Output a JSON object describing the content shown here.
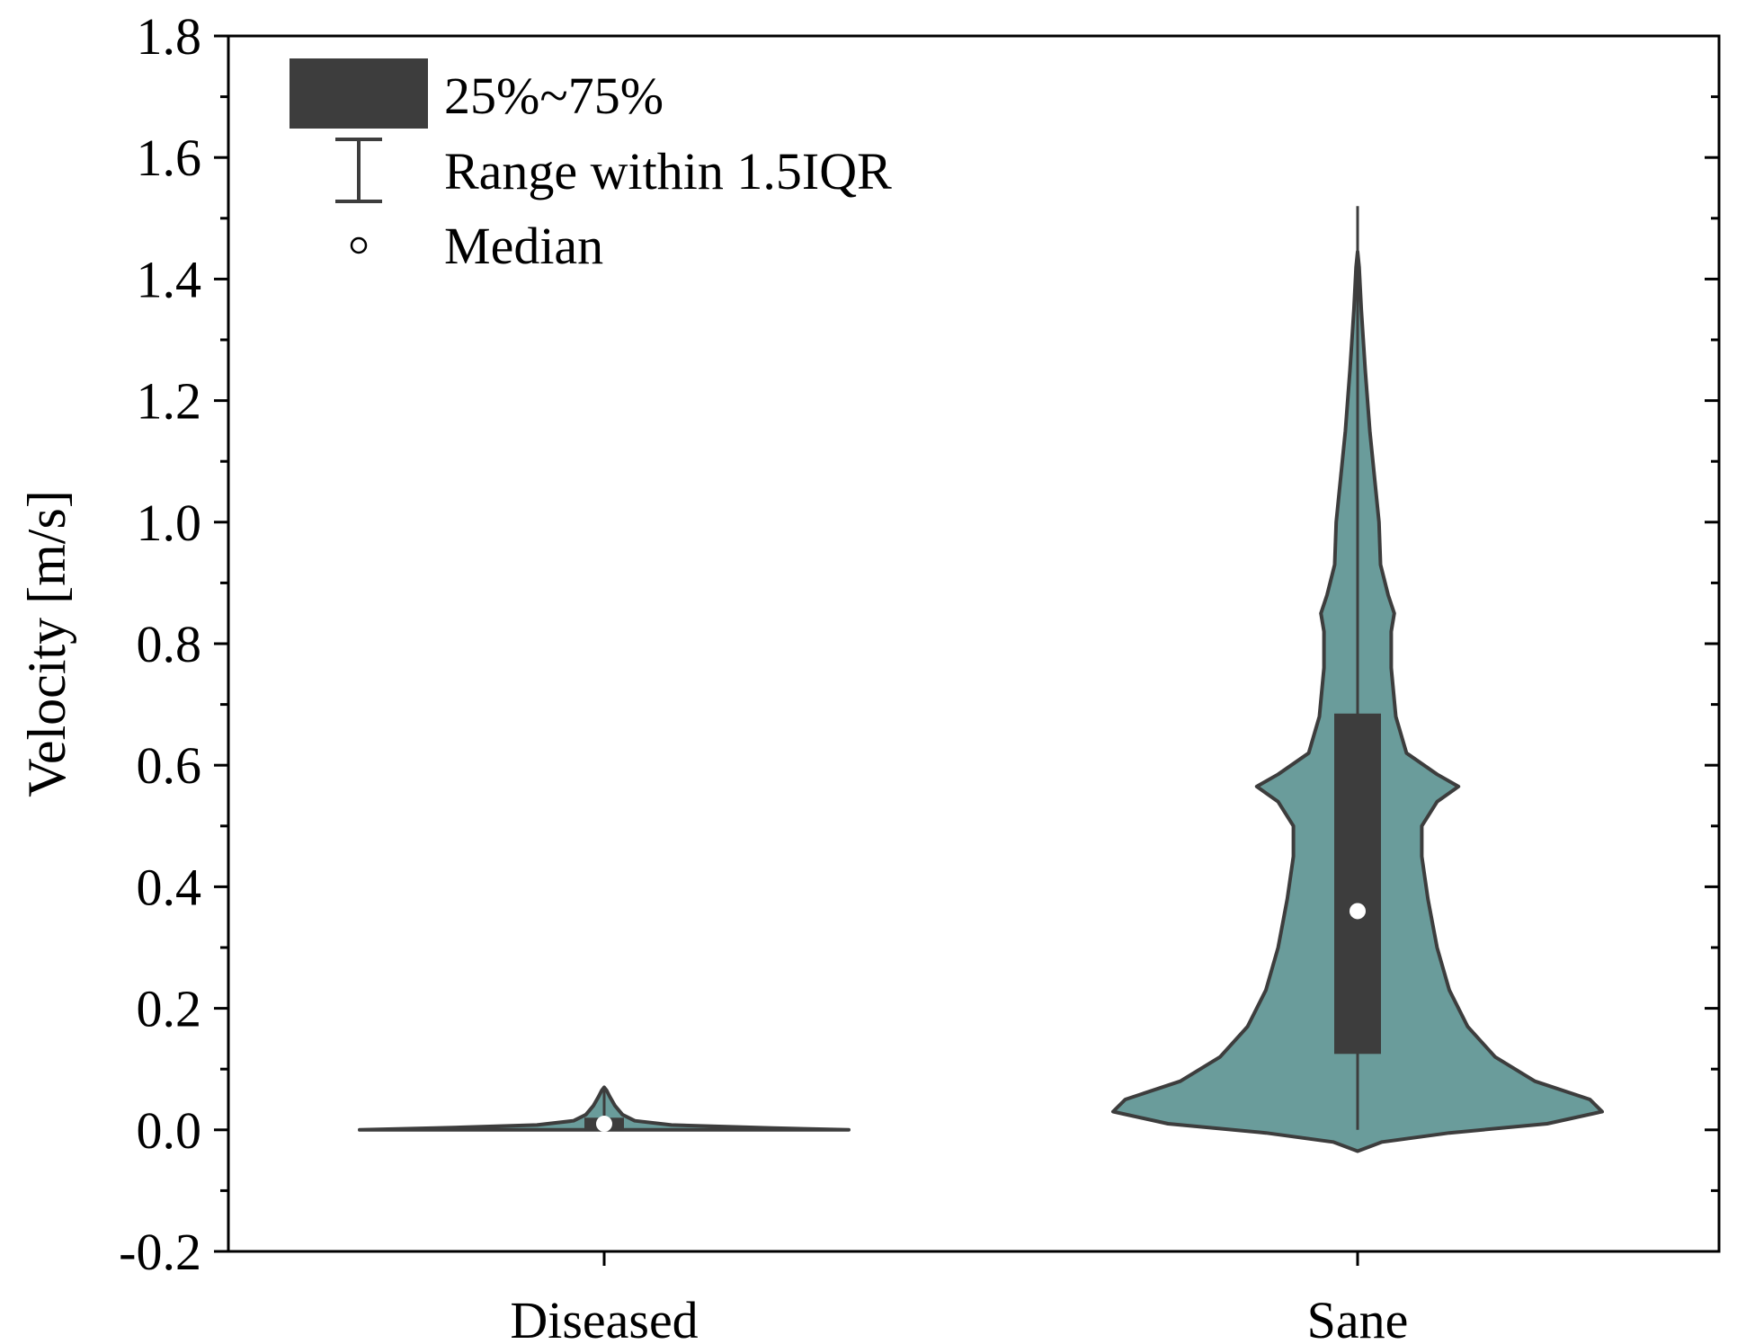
{
  "chart_data": {
    "type": "violin",
    "ylabel": "Velocity [m/s]",
    "xlabel": "",
    "ylim": [
      -0.2,
      1.8
    ],
    "yticks": [
      "-0.2",
      "0.0",
      "0.2",
      "0.4",
      "0.6",
      "0.8",
      "1.0",
      "1.2",
      "1.4",
      "1.6",
      "1.8"
    ],
    "categories": [
      "Diseased",
      "Sane"
    ],
    "fill_color": "#6a9c9b",
    "box_color": "#3d3d3d",
    "line_color": "#3d3d3d",
    "legend": {
      "placement": "top-left",
      "items": [
        {
          "symbol": "box",
          "label": "25%~75%"
        },
        {
          "symbol": "whisker",
          "label": "Range within 1.5IQR"
        },
        {
          "symbol": "median-dot",
          "label": "Median"
        }
      ]
    },
    "series": [
      {
        "category": "Diseased",
        "q1": 0.0,
        "q3": 0.02,
        "median": 0.01,
        "whisker_low": 0.0,
        "whisker_high": 0.07,
        "density": [
          {
            "y": 0.0,
            "w": 0.8
          },
          {
            "y": 0.003,
            "w": 0.55
          },
          {
            "y": 0.008,
            "w": 0.22
          },
          {
            "y": 0.015,
            "w": 0.1
          },
          {
            "y": 0.025,
            "w": 0.06
          },
          {
            "y": 0.04,
            "w": 0.035
          },
          {
            "y": 0.055,
            "w": 0.018
          },
          {
            "y": 0.065,
            "w": 0.008
          },
          {
            "y": 0.07,
            "w": 0.0
          }
        ]
      },
      {
        "category": "Sane",
        "q1": 0.125,
        "q3": 0.685,
        "median": 0.36,
        "whisker_low": 0.0,
        "whisker_high": 1.52,
        "density": [
          {
            "y": -0.035,
            "w": 0.0
          },
          {
            "y": -0.02,
            "w": 0.08
          },
          {
            "y": -0.005,
            "w": 0.3
          },
          {
            "y": 0.01,
            "w": 0.62
          },
          {
            "y": 0.03,
            "w": 0.8
          },
          {
            "y": 0.05,
            "w": 0.76
          },
          {
            "y": 0.08,
            "w": 0.58
          },
          {
            "y": 0.12,
            "w": 0.45
          },
          {
            "y": 0.17,
            "w": 0.36
          },
          {
            "y": 0.23,
            "w": 0.3
          },
          {
            "y": 0.3,
            "w": 0.26
          },
          {
            "y": 0.38,
            "w": 0.23
          },
          {
            "y": 0.45,
            "w": 0.21
          },
          {
            "y": 0.5,
            "w": 0.21
          },
          {
            "y": 0.54,
            "w": 0.26
          },
          {
            "y": 0.565,
            "w": 0.33
          },
          {
            "y": 0.585,
            "w": 0.26
          },
          {
            "y": 0.62,
            "w": 0.16
          },
          {
            "y": 0.68,
            "w": 0.125
          },
          {
            "y": 0.76,
            "w": 0.11
          },
          {
            "y": 0.82,
            "w": 0.11
          },
          {
            "y": 0.85,
            "w": 0.12
          },
          {
            "y": 0.88,
            "w": 0.1
          },
          {
            "y": 0.93,
            "w": 0.075
          },
          {
            "y": 1.0,
            "w": 0.07
          },
          {
            "y": 1.05,
            "w": 0.06
          },
          {
            "y": 1.15,
            "w": 0.04
          },
          {
            "y": 1.25,
            "w": 0.025
          },
          {
            "y": 1.35,
            "w": 0.012
          },
          {
            "y": 1.42,
            "w": 0.005
          },
          {
            "y": 1.445,
            "w": 0.0
          }
        ]
      }
    ]
  }
}
